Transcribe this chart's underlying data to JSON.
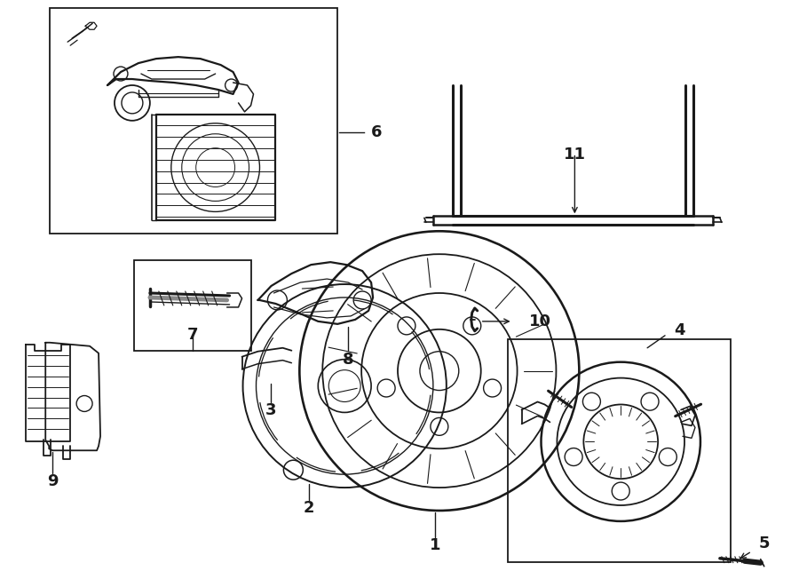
{
  "bg_color": "#ffffff",
  "lc": "#1a1a1a",
  "lw": 1.3,
  "fig_w": 9.0,
  "fig_h": 6.61
}
